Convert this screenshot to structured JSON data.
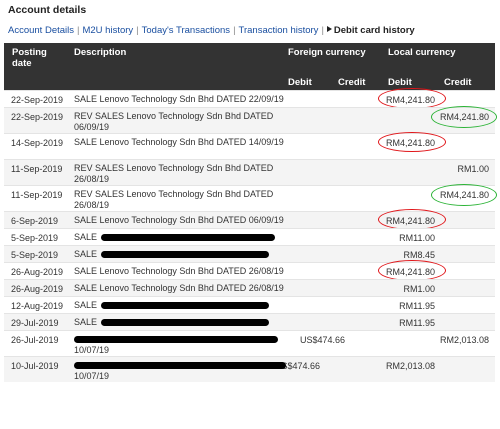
{
  "title": "Account details",
  "tabs": [
    {
      "label": "Account Details",
      "active": false
    },
    {
      "label": "M2U history",
      "active": false
    },
    {
      "label": "Today's Transactions",
      "active": false
    },
    {
      "label": "Transaction history",
      "active": false
    },
    {
      "label": "Debit card history",
      "active": true
    }
  ],
  "headers": {
    "posting_date": "Posting date",
    "description": "Description",
    "foreign_currency": "Foreign currency",
    "local_currency": "Local currency",
    "debit": "Debit",
    "credit": "Credit"
  },
  "rows": [
    {
      "date": "22-Sep-2019",
      "desc": "SALE Lenovo Technology Sdn Bhd DATED 22/09/19",
      "fdebit": "",
      "fcredit": "",
      "ldebit": "RM4,241.80",
      "lcredit": "",
      "annot": "red-debit"
    },
    {
      "date": "22-Sep-2019",
      "desc": "REV SALES Lenovo Technology Sdn Bhd DATED 06/09/19",
      "fdebit": "",
      "fcredit": "",
      "ldebit": "",
      "lcredit": "RM4,241.80",
      "annot": "green-credit"
    },
    {
      "date": "14-Sep-2019",
      "desc": "SALE Lenovo Technology Sdn Bhd DATED 14/09/19",
      "fdebit": "",
      "fcredit": "",
      "ldebit": "RM4,241.80",
      "lcredit": "",
      "annot": "red-debit"
    },
    {
      "date": "11-Sep-2019",
      "desc": "REV SALES Lenovo Technology Sdn Bhd DATED 26/08/19",
      "fdebit": "",
      "fcredit": "",
      "ldebit": "",
      "lcredit": "RM1.00",
      "annot": ""
    },
    {
      "date": "11-Sep-2019",
      "desc": "REV SALES Lenovo Technology Sdn Bhd DATED 26/08/19",
      "fdebit": "",
      "fcredit": "",
      "ldebit": "",
      "lcredit": "RM4,241.80",
      "annot": "green-credit"
    },
    {
      "date": "6-Sep-2019",
      "desc": "SALE Lenovo Technology Sdn Bhd DATED 06/09/19",
      "fdebit": "",
      "fcredit": "",
      "ldebit": "RM4,241.80",
      "lcredit": "",
      "annot": "red-debit"
    },
    {
      "date": "5-Sep-2019",
      "desc": "SALE",
      "fdebit": "",
      "fcredit": "",
      "ldebit": "RM11.00",
      "lcredit": "",
      "annot": "",
      "redact": true
    },
    {
      "date": "5-Sep-2019",
      "desc": "SALE",
      "fdebit": "",
      "fcredit": "",
      "ldebit": "RM8.45",
      "lcredit": "",
      "annot": "",
      "redact": true
    },
    {
      "date": "26-Aug-2019",
      "desc": "SALE Lenovo Technology Sdn Bhd DATED 26/08/19",
      "fdebit": "",
      "fcredit": "",
      "ldebit": "RM4,241.80",
      "lcredit": "",
      "annot": "red-debit"
    },
    {
      "date": "26-Aug-2019",
      "desc": "SALE Lenovo Technology Sdn Bhd DATED 26/08/19",
      "fdebit": "",
      "fcredit": "",
      "ldebit": "RM1.00",
      "lcredit": "",
      "annot": ""
    },
    {
      "date": "12-Aug-2019",
      "desc": "SALE",
      "fdebit": "",
      "fcredit": "",
      "ldebit": "RM11.95",
      "lcredit": "",
      "annot": "",
      "redact": true
    },
    {
      "date": "29-Jul-2019",
      "desc": "SALE",
      "fdebit": "",
      "fcredit": "",
      "ldebit": "RM11.95",
      "lcredit": "",
      "annot": "",
      "redact": true
    },
    {
      "date": "26-Jul-2019",
      "desc": "10/07/19",
      "fdebit": "",
      "fcredit": "US$474.66",
      "ldebit": "",
      "lcredit": "RM2,013.08",
      "annot": "",
      "redact": true,
      "redact_full": true
    },
    {
      "date": "10-Jul-2019",
      "desc": "10/07/19",
      "fdebit": "US$474.66",
      "fcredit": "",
      "ldebit": "RM2,013.08",
      "lcredit": "",
      "annot": "",
      "redact": true,
      "redact_full": true
    }
  ]
}
